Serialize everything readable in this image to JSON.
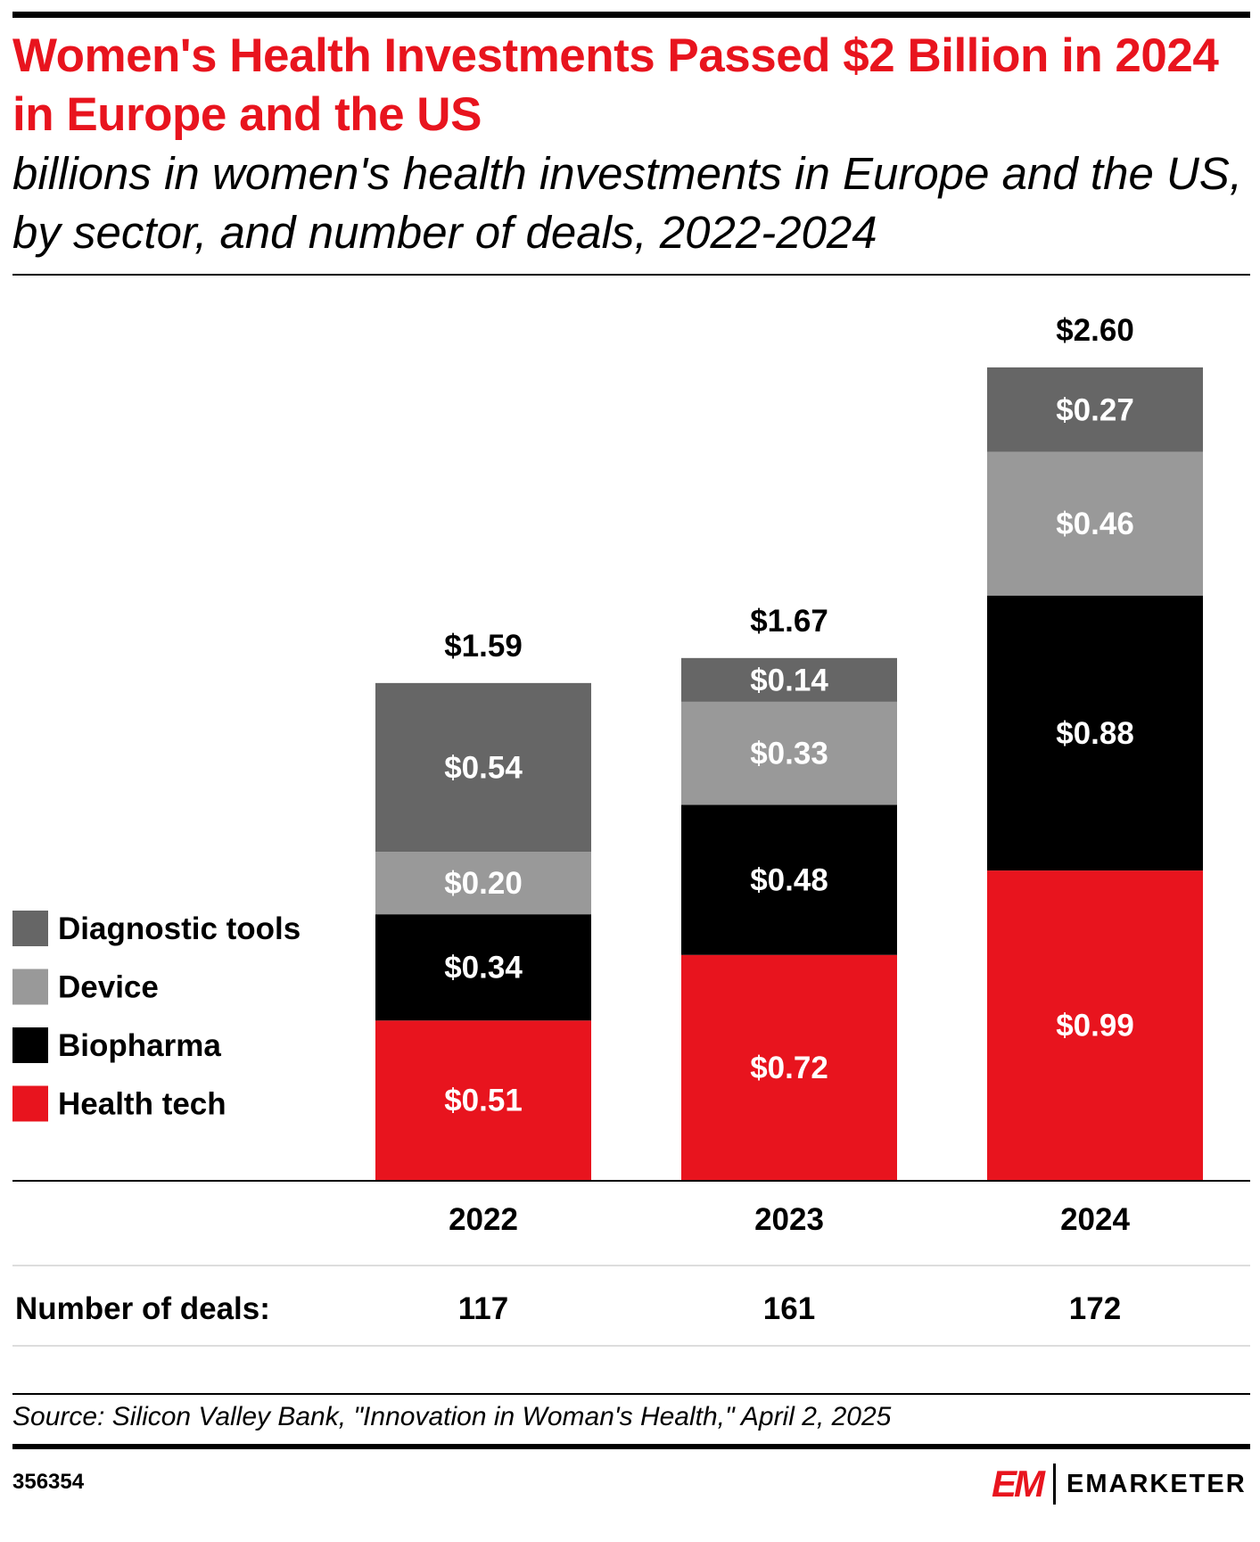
{
  "title": "Women's Health Investments Passed $2 Billion in 2024 in Europe and the US",
  "subtitle": "billions in women's health investments in Europe and the US, by sector, and number of deals, 2022-2024",
  "source": "Source: Silicon Valley Bank, \"Innovation in Woman's Health,\" April 2, 2025",
  "chart_id": "356354",
  "logo": {
    "mark": "EM",
    "name": "EMARKETER"
  },
  "deals_label": "Number of deals:",
  "chart_data": {
    "type": "bar",
    "stacked": true,
    "categories": [
      "2022",
      "2023",
      "2024"
    ],
    "series": [
      {
        "name": "Health tech",
        "color": "#E8141E",
        "values": [
          0.51,
          0.72,
          0.99
        ],
        "labels": [
          "$0.51",
          "$0.72",
          "$0.99"
        ]
      },
      {
        "name": "Biopharma",
        "color": "#000000",
        "values": [
          0.34,
          0.48,
          0.88
        ],
        "labels": [
          "$0.34",
          "$0.48",
          "$0.88"
        ]
      },
      {
        "name": "Device",
        "color": "#999999",
        "values": [
          0.2,
          0.33,
          0.46
        ],
        "labels": [
          "$0.20",
          "$0.33",
          "$0.46"
        ]
      },
      {
        "name": "Diagnostic tools",
        "color": "#666666",
        "values": [
          0.54,
          0.14,
          0.27
        ],
        "labels": [
          "$0.54",
          "$0.14",
          "$0.27"
        ]
      }
    ],
    "totals": [
      1.59,
      1.67,
      2.6
    ],
    "total_labels": [
      "$1.59",
      "$1.67",
      "$2.60"
    ],
    "deals": [
      "117",
      "161",
      "172"
    ],
    "legend_position": "left",
    "grid": false
  }
}
